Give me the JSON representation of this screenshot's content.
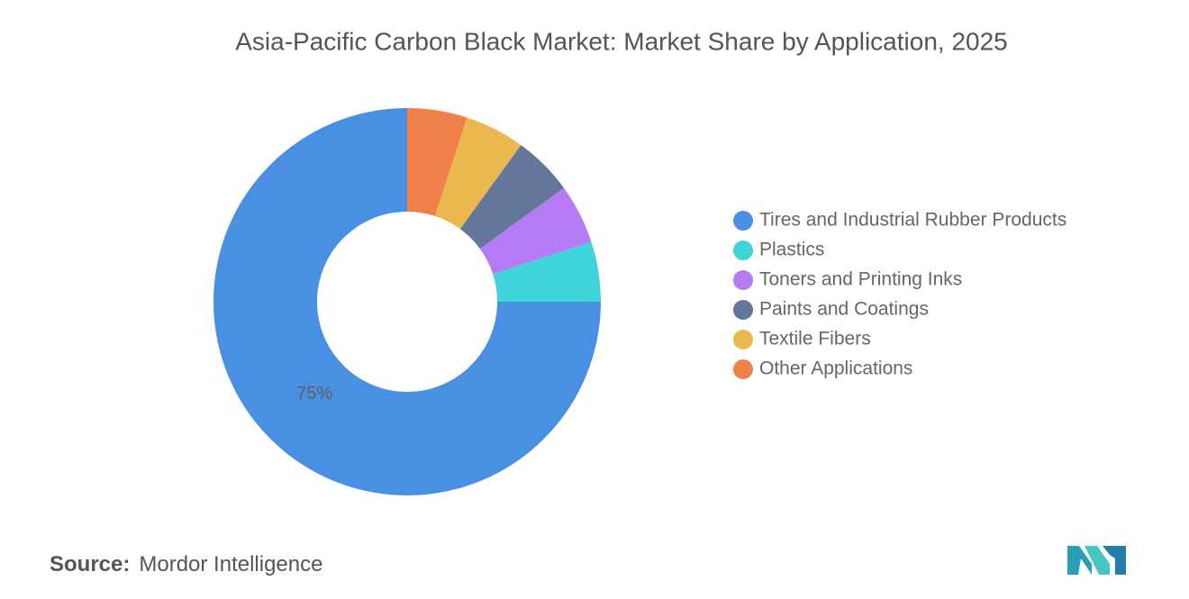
{
  "chart_data": {
    "type": "donut",
    "title": "Asia-Pacific Carbon Black Market: Market Share by Application, 2025",
    "categories": [
      "Tires and Industrial Rubber Products",
      "Plastics",
      "Toners and Printing Inks",
      "Paints and Coatings",
      "Textile Fibers",
      "Other Applications"
    ],
    "values": [
      75,
      5,
      5,
      5,
      5,
      5
    ],
    "value_labels": [
      "75%",
      null,
      null,
      null,
      null,
      null
    ],
    "colors": [
      "#4a90e2",
      "#3fd3da",
      "#b47bf5",
      "#64779b",
      "#ebb84f",
      "#f0804a"
    ],
    "legend": "right"
  },
  "source": {
    "label": "Source:",
    "text": "Mordor Intelligence"
  }
}
